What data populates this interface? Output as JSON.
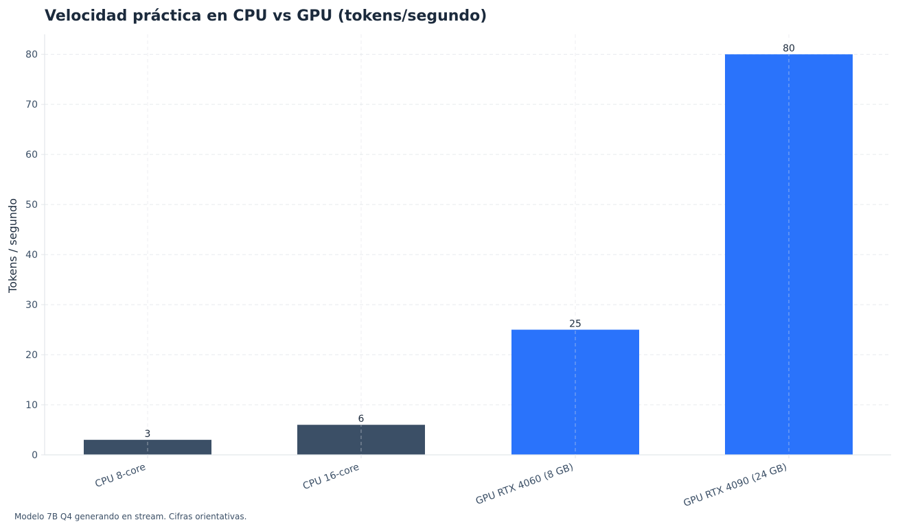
{
  "chart_data": {
    "type": "bar",
    "title": "Velocidad práctica en CPU vs GPU (tokens/segundo)",
    "xlabel": "",
    "ylabel": "Tokens / segundo",
    "categories": [
      "CPU 8-core",
      "CPU 16-core",
      "GPU RTX 4060 (8 GB)",
      "GPU RTX 4090 (24 GB)"
    ],
    "values": [
      3,
      6,
      25,
      80
    ],
    "value_labels": [
      "3",
      "6",
      "25",
      "80"
    ],
    "ylim": [
      0,
      84
    ],
    "yticks": [
      0,
      10,
      20,
      30,
      40,
      50,
      60,
      70,
      80
    ],
    "grid": true,
    "bar_colors": [
      "#3b4f66",
      "#3b4f66",
      "#2a73fb",
      "#2a73fb"
    ],
    "footnote": "Modelo 7B Q4 generando en stream. Cifras orientativas."
  },
  "colors": {
    "title": "#1b2a3c",
    "tick_label": "#3b4f66",
    "axis_line": "#e2e6ea",
    "grid": "#dde1e6",
    "value_label": "#1b2a3c"
  }
}
